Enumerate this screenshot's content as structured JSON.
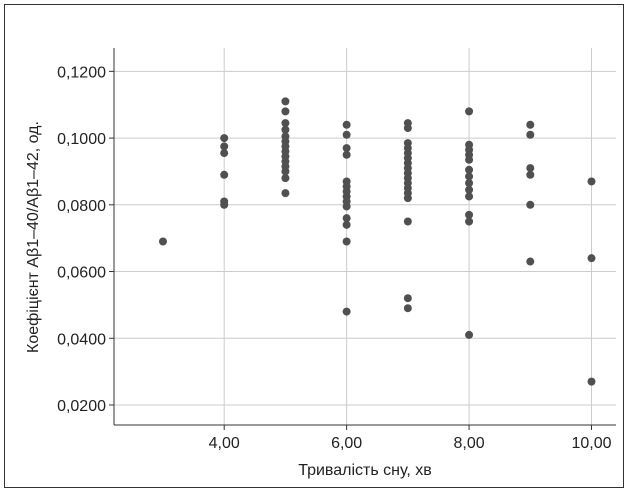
{
  "chart_data": {
    "type": "scatter",
    "title": "",
    "xlabel": "Тривалість сну, хв",
    "ylabel": "Коефіцієнт Aβ1–40/Aβ1–42, од.",
    "xlim": [
      2.2,
      10.4
    ],
    "ylim": [
      0.014,
      0.127
    ],
    "x_ticks": [
      4,
      6,
      8,
      10
    ],
    "x_tick_labels": [
      "4,00",
      "6,00",
      "8,00",
      "10,00"
    ],
    "y_ticks": [
      0.02,
      0.04,
      0.06,
      0.08,
      0.1,
      0.12
    ],
    "y_tick_labels": [
      "0,0200",
      "0,0400",
      "0,0600",
      "0,0800",
      "0,1000",
      "0,1200"
    ],
    "grid": true,
    "legend": "none",
    "point_color": "#505050",
    "grid_color": "#cccccc",
    "axis_color": "#333333",
    "points": [
      {
        "x": 3,
        "y": 0.069
      },
      {
        "x": 4,
        "y": 0.1
      },
      {
        "x": 4,
        "y": 0.0975
      },
      {
        "x": 4,
        "y": 0.0955
      },
      {
        "x": 4,
        "y": 0.089
      },
      {
        "x": 4,
        "y": 0.081
      },
      {
        "x": 4,
        "y": 0.08
      },
      {
        "x": 5,
        "y": 0.111
      },
      {
        "x": 5,
        "y": 0.108
      },
      {
        "x": 5,
        "y": 0.1045
      },
      {
        "x": 5,
        "y": 0.1025
      },
      {
        "x": 5,
        "y": 0.1005
      },
      {
        "x": 5,
        "y": 0.099
      },
      {
        "x": 5,
        "y": 0.0975
      },
      {
        "x": 5,
        "y": 0.096
      },
      {
        "x": 5,
        "y": 0.0945
      },
      {
        "x": 5,
        "y": 0.093
      },
      {
        "x": 5,
        "y": 0.0915
      },
      {
        "x": 5,
        "y": 0.09
      },
      {
        "x": 5,
        "y": 0.088
      },
      {
        "x": 5,
        "y": 0.0835
      },
      {
        "x": 6,
        "y": 0.104
      },
      {
        "x": 6,
        "y": 0.101
      },
      {
        "x": 6,
        "y": 0.097
      },
      {
        "x": 6,
        "y": 0.095
      },
      {
        "x": 6,
        "y": 0.087
      },
      {
        "x": 6,
        "y": 0.0855
      },
      {
        "x": 6,
        "y": 0.084
      },
      {
        "x": 6,
        "y": 0.0825
      },
      {
        "x": 6,
        "y": 0.081
      },
      {
        "x": 6,
        "y": 0.0795
      },
      {
        "x": 6,
        "y": 0.076
      },
      {
        "x": 6,
        "y": 0.074
      },
      {
        "x": 6,
        "y": 0.069
      },
      {
        "x": 6,
        "y": 0.048
      },
      {
        "x": 7,
        "y": 0.1045
      },
      {
        "x": 7,
        "y": 0.103
      },
      {
        "x": 7,
        "y": 0.0985
      },
      {
        "x": 7,
        "y": 0.097
      },
      {
        "x": 7,
        "y": 0.0955
      },
      {
        "x": 7,
        "y": 0.094
      },
      {
        "x": 7,
        "y": 0.0925
      },
      {
        "x": 7,
        "y": 0.091
      },
      {
        "x": 7,
        "y": 0.0895
      },
      {
        "x": 7,
        "y": 0.088
      },
      {
        "x": 7,
        "y": 0.0865
      },
      {
        "x": 7,
        "y": 0.085
      },
      {
        "x": 7,
        "y": 0.0835
      },
      {
        "x": 7,
        "y": 0.082
      },
      {
        "x": 7,
        "y": 0.075
      },
      {
        "x": 7,
        "y": 0.052
      },
      {
        "x": 7,
        "y": 0.049
      },
      {
        "x": 8,
        "y": 0.108
      },
      {
        "x": 8,
        "y": 0.098
      },
      {
        "x": 8,
        "y": 0.0965
      },
      {
        "x": 8,
        "y": 0.095
      },
      {
        "x": 8,
        "y": 0.0935
      },
      {
        "x": 8,
        "y": 0.0905
      },
      {
        "x": 8,
        "y": 0.0885
      },
      {
        "x": 8,
        "y": 0.0865
      },
      {
        "x": 8,
        "y": 0.0845
      },
      {
        "x": 8,
        "y": 0.0825
      },
      {
        "x": 8,
        "y": 0.077
      },
      {
        "x": 8,
        "y": 0.075
      },
      {
        "x": 8,
        "y": 0.041
      },
      {
        "x": 9,
        "y": 0.104
      },
      {
        "x": 9,
        "y": 0.101
      },
      {
        "x": 9,
        "y": 0.091
      },
      {
        "x": 9,
        "y": 0.089
      },
      {
        "x": 9,
        "y": 0.08
      },
      {
        "x": 9,
        "y": 0.063
      },
      {
        "x": 10,
        "y": 0.087
      },
      {
        "x": 10,
        "y": 0.064
      },
      {
        "x": 10,
        "y": 0.027
      }
    ]
  }
}
